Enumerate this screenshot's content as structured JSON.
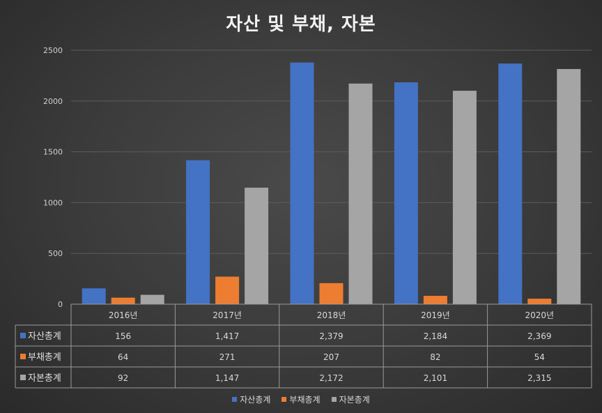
{
  "chart_data": {
    "type": "bar",
    "title": "자산 및 부채, 자본",
    "categories": [
      "2016년",
      "2017년",
      "2018년",
      "2019년",
      "2020년"
    ],
    "ylim": [
      0,
      2500
    ],
    "yticks": [
      "0",
      "500",
      "1000",
      "1500",
      "2000",
      "2500"
    ],
    "grid": true,
    "legend_position": "bottom",
    "series": [
      {
        "name": "자산총계",
        "color": "#4472c4",
        "values": [
          156,
          1417,
          2379,
          2184,
          2369
        ],
        "labels": [
          "156",
          "1,417",
          "2,379",
          "2,184",
          "2,369"
        ]
      },
      {
        "name": "부채총계",
        "color": "#ed7d31",
        "values": [
          64,
          271,
          207,
          82,
          54
        ],
        "labels": [
          "64",
          "271",
          "207",
          "82",
          "54"
        ]
      },
      {
        "name": "자본총계",
        "color": "#a5a5a5",
        "values": [
          92,
          1147,
          2172,
          2101,
          2315
        ],
        "labels": [
          "92",
          "1,147",
          "2,172",
          "2,101",
          "2,315"
        ]
      }
    ]
  }
}
